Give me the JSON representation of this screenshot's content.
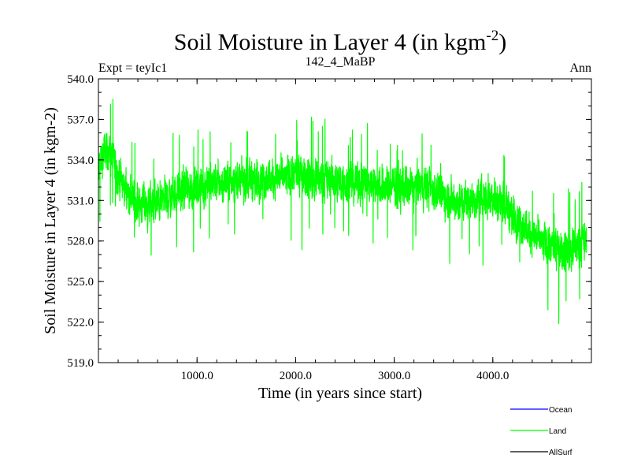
{
  "title": {
    "main": "Soil Moisture in Layer 4 (in kgm",
    "sup": "-2",
    "close": ")"
  },
  "subtitle_left": "Expt = teyIc1",
  "subtitle_center": "142_4_MaBP",
  "subtitle_right": "Ann",
  "legend": [
    {
      "name": "Ocean",
      "color": "#0000ff"
    },
    {
      "name": "Land",
      "color": "#00ff00"
    },
    {
      "name": "AllSurf",
      "color": "#000000"
    }
  ],
  "chart_data": {
    "type": "line",
    "title": "Soil Moisture in Layer 4 (in kgm-2)",
    "xlabel": "Time (in years since start)",
    "ylabel": "Soil Moisture in Layer 4 (in kgm-2)",
    "xlim": [
      0,
      5000
    ],
    "ylim": [
      519.0,
      540.0
    ],
    "xticks": [
      1000,
      2000,
      3000,
      4000
    ],
    "xtick_labels": [
      "1000.0",
      "2000.0",
      "3000.0",
      "4000.0"
    ],
    "yticks": [
      519.0,
      522.0,
      525.0,
      528.0,
      531.0,
      534.0,
      537.0,
      540.0
    ],
    "ytick_labels": [
      "519.0",
      "522.0",
      "525.0",
      "528.0",
      "531.0",
      "534.0",
      "537.0",
      "540.0"
    ],
    "legend_position": "bottom-right",
    "series": [
      {
        "name": "Land",
        "color": "#00ff00",
        "x": [
          0,
          50,
          100,
          150,
          200,
          300,
          400,
          500,
          600,
          700,
          800,
          900,
          1000,
          1100,
          1200,
          1300,
          1400,
          1500,
          1600,
          1700,
          1800,
          1900,
          2000,
          2100,
          2200,
          2300,
          2400,
          2500,
          2600,
          2700,
          2800,
          2900,
          3000,
          3100,
          3200,
          3300,
          3400,
          3500,
          3600,
          3700,
          3800,
          3900,
          4000,
          4100,
          4200,
          4300,
          4400,
          4500,
          4600,
          4700,
          4800,
          4900,
          4950
        ],
        "y": [
          533.0,
          534.5,
          534.8,
          534.0,
          532.8,
          531.5,
          530.8,
          530.6,
          530.8,
          531.2,
          531.5,
          531.8,
          532.0,
          532.2,
          532.3,
          532.4,
          532.5,
          532.5,
          532.6,
          532.6,
          532.7,
          532.7,
          532.8,
          532.7,
          532.6,
          532.5,
          532.5,
          532.4,
          532.3,
          532.3,
          532.2,
          532.0,
          532.0,
          531.9,
          532.0,
          532.1,
          531.8,
          531.4,
          531.0,
          530.9,
          531.0,
          531.2,
          531.3,
          530.8,
          530.0,
          529.2,
          528.5,
          527.9,
          527.4,
          527.2,
          527.4,
          527.8,
          528.0
        ],
        "noise_amplitude": 2.4,
        "annual_range": [
          521.5,
          538.5
        ]
      },
      {
        "name": "Ocean",
        "color": "#0000ff",
        "x": [],
        "y": []
      },
      {
        "name": "AllSurf",
        "color": "#000000",
        "x": [],
        "y": []
      }
    ]
  }
}
